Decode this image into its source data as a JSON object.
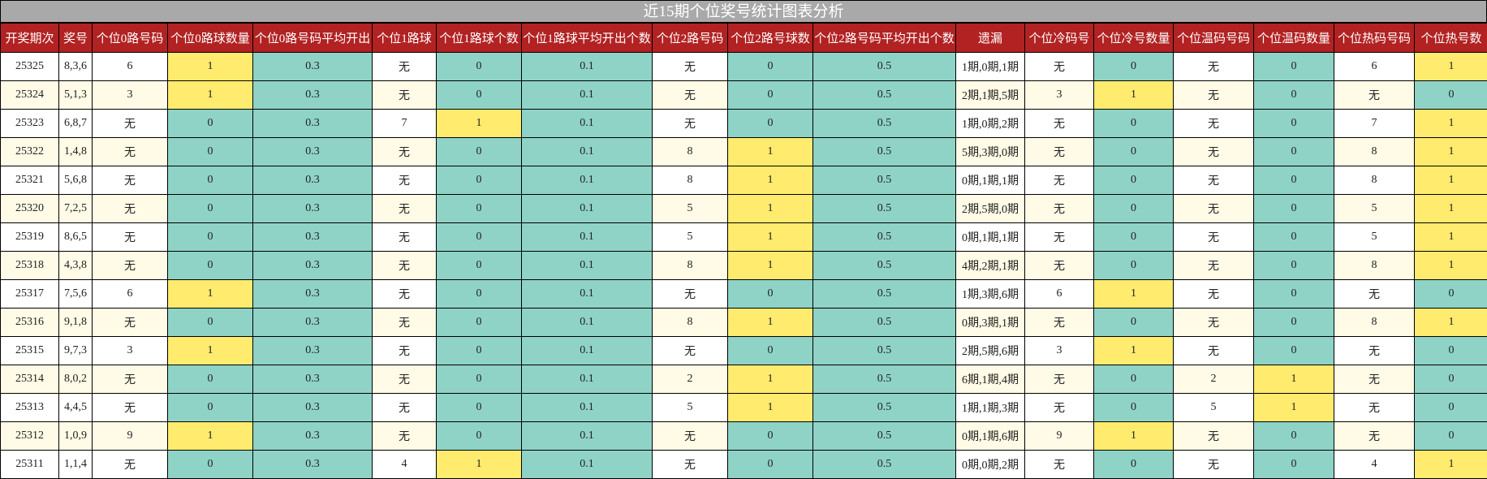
{
  "title": "近15期个位奖号统计图表分析",
  "colors": {
    "header_bg": "#b22222",
    "title_bg": "#a9a9a9",
    "zero_count": "#8fd3c7",
    "one_count": "#ffeb6e",
    "alt_row": "#fffbe6"
  },
  "columns": [
    "开奖期次",
    "奖号",
    "个位0路号码",
    "个位0路球数量",
    "个位0路号码平均开出",
    "个位1路球",
    "个位1路球个数",
    "个位1路球平均开出个数",
    "个位2路号码",
    "个位2路号球数",
    "个位2路号码平均开出个数",
    "遗漏",
    "个位冷码号",
    "个位冷号数量",
    "个位温码号码",
    "个位温码数量",
    "个位热码号码",
    "个位热号数"
  ],
  "rows": [
    [
      "25325",
      "8,3,6",
      "6",
      "1",
      "0.3",
      "无",
      "0",
      "0.1",
      "无",
      "0",
      "0.5",
      "1期,0期,1期",
      "无",
      "0",
      "无",
      "0",
      "6",
      "1"
    ],
    [
      "25324",
      "5,1,3",
      "3",
      "1",
      "0.3",
      "无",
      "0",
      "0.1",
      "无",
      "0",
      "0.5",
      "2期,1期,5期",
      "3",
      "1",
      "无",
      "0",
      "无",
      "0"
    ],
    [
      "25323",
      "6,8,7",
      "无",
      "0",
      "0.3",
      "7",
      "1",
      "0.1",
      "无",
      "0",
      "0.5",
      "1期,0期,2期",
      "无",
      "0",
      "无",
      "0",
      "7",
      "1"
    ],
    [
      "25322",
      "1,4,8",
      "无",
      "0",
      "0.3",
      "无",
      "0",
      "0.1",
      "8",
      "1",
      "0.5",
      "5期,3期,0期",
      "无",
      "0",
      "无",
      "0",
      "8",
      "1"
    ],
    [
      "25321",
      "5,6,8",
      "无",
      "0",
      "0.3",
      "无",
      "0",
      "0.1",
      "8",
      "1",
      "0.5",
      "0期,1期,1期",
      "无",
      "0",
      "无",
      "0",
      "8",
      "1"
    ],
    [
      "25320",
      "7,2,5",
      "无",
      "0",
      "0.3",
      "无",
      "0",
      "0.1",
      "5",
      "1",
      "0.5",
      "2期,5期,0期",
      "无",
      "0",
      "无",
      "0",
      "5",
      "1"
    ],
    [
      "25319",
      "8,6,5",
      "无",
      "0",
      "0.3",
      "无",
      "0",
      "0.1",
      "5",
      "1",
      "0.5",
      "0期,1期,1期",
      "无",
      "0",
      "无",
      "0",
      "5",
      "1"
    ],
    [
      "25318",
      "4,3,8",
      "无",
      "0",
      "0.3",
      "无",
      "0",
      "0.1",
      "8",
      "1",
      "0.5",
      "4期,2期,1期",
      "无",
      "0",
      "无",
      "0",
      "8",
      "1"
    ],
    [
      "25317",
      "7,5,6",
      "6",
      "1",
      "0.3",
      "无",
      "0",
      "0.1",
      "无",
      "0",
      "0.5",
      "1期,3期,6期",
      "6",
      "1",
      "无",
      "0",
      "无",
      "0"
    ],
    [
      "25316",
      "9,1,8",
      "无",
      "0",
      "0.3",
      "无",
      "0",
      "0.1",
      "8",
      "1",
      "0.5",
      "0期,3期,1期",
      "无",
      "0",
      "无",
      "0",
      "8",
      "1"
    ],
    [
      "25315",
      "9,7,3",
      "3",
      "1",
      "0.3",
      "无",
      "0",
      "0.1",
      "无",
      "0",
      "0.5",
      "2期,5期,6期",
      "3",
      "1",
      "无",
      "0",
      "无",
      "0"
    ],
    [
      "25314",
      "8,0,2",
      "无",
      "0",
      "0.3",
      "无",
      "0",
      "0.1",
      "2",
      "1",
      "0.5",
      "6期,1期,4期",
      "无",
      "0",
      "2",
      "1",
      "无",
      "0"
    ],
    [
      "25313",
      "4,4,5",
      "无",
      "0",
      "0.3",
      "无",
      "0",
      "0.1",
      "5",
      "1",
      "0.5",
      "1期,1期,3期",
      "无",
      "0",
      "5",
      "1",
      "无",
      "0"
    ],
    [
      "25312",
      "1,0,9",
      "9",
      "1",
      "0.3",
      "无",
      "0",
      "0.1",
      "无",
      "0",
      "0.5",
      "0期,1期,6期",
      "9",
      "1",
      "无",
      "0",
      "无",
      "0"
    ],
    [
      "25311",
      "1,1,4",
      "无",
      "0",
      "0.3",
      "4",
      "1",
      "0.1",
      "无",
      "0",
      "0.5",
      "0期,0期,2期",
      "无",
      "0",
      "无",
      "0",
      "4",
      "1"
    ]
  ]
}
